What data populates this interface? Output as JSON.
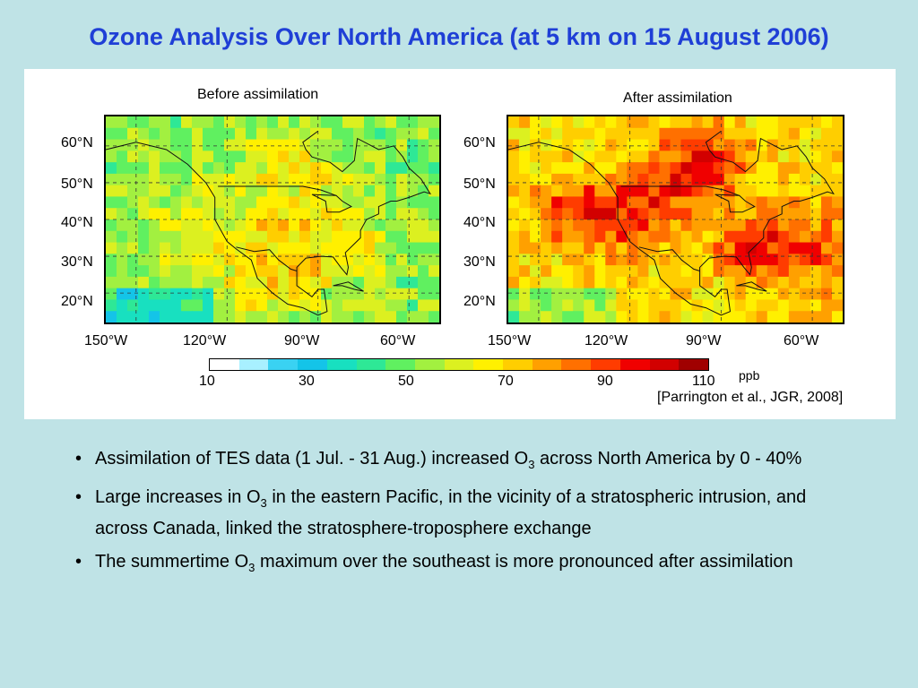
{
  "title": "Ozone Analysis Over North America (at 5 km on 15 August 2006)",
  "chart_data": [
    {
      "type": "heatmap",
      "title": "Before assimilation",
      "lat_labels": [
        "60°N",
        "50°N",
        "40°N",
        "30°N",
        "20°N"
      ],
      "lon_labels": [
        "150°W",
        "120°W",
        "90°W",
        "60°W"
      ],
      "units": "ppb",
      "range": [
        10,
        110
      ],
      "rows": 18,
      "cols": 31,
      "seed": 7,
      "base": 52,
      "hotspots": [
        [
          -120,
          32,
          16,
          62
        ],
        [
          -100,
          30,
          10,
          64
        ],
        [
          -80,
          35,
          8,
          62
        ],
        [
          -95,
          55,
          8,
          62
        ]
      ]
    },
    {
      "type": "heatmap",
      "title": "After assimilation",
      "lat_labels": [
        "60°N",
        "50°N",
        "40°N",
        "30°N",
        "20°N"
      ],
      "lon_labels": [
        "150°W",
        "120°W",
        "90°W",
        "60°W"
      ],
      "units": "ppb",
      "range": [
        10,
        110
      ],
      "rows": 18,
      "cols": 31,
      "seed": 11,
      "base": 68,
      "hotspots": [
        [
          -95,
          55,
          8,
          92
        ],
        [
          -140,
          42,
          6,
          86
        ],
        [
          -80,
          32,
          6,
          92
        ],
        [
          -125,
          40,
          8,
          84
        ],
        [
          -60,
          32,
          8,
          88
        ],
        [
          -110,
          45,
          8,
          82
        ]
      ]
    }
  ],
  "colorbar": {
    "ticks": [
      "10",
      "30",
      "50",
      "70",
      "90",
      "110"
    ],
    "unit": "ppb",
    "colors": [
      "#ffffff",
      "#a8f0ff",
      "#3ad2f2",
      "#14c4e8",
      "#18e0c0",
      "#2ee896",
      "#60f060",
      "#a2f040",
      "#dcf020",
      "#fff000",
      "#ffce00",
      "#ffa000",
      "#ff7000",
      "#ff3c00",
      "#f00000",
      "#d20000",
      "#a00000"
    ]
  },
  "citation": "[Parrington et al., JGR, 2008]",
  "bullets": [
    {
      "pre": "Assimilation of TES data (1 Jul. - 31 Aug.) increased O",
      "sub": "3",
      "post": " across North America by 0 - 40%"
    },
    {
      "pre": "Large increases in O",
      "sub": "3",
      "post": " in the eastern Pacific, in the vicinity of a stratospheric intrusion, and across Canada, linked the stratosphere-troposphere exchange"
    },
    {
      "pre": "The summertime O",
      "sub": "3",
      "post": " maximum over the southeast is more pronounced after assimilation"
    }
  ]
}
